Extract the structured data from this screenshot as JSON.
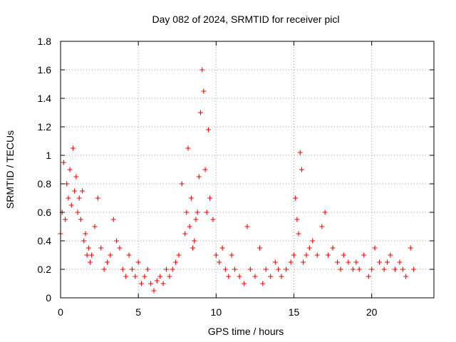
{
  "chart_data": {
    "type": "scatter",
    "title": "Day 082 of 2024, SRMTID for receiver picl",
    "xlabel": "GPS time / hours",
    "ylabel": "SRMTID / TECUs",
    "xlim": [
      0,
      24
    ],
    "ylim": [
      0,
      1.8
    ],
    "x_ticks": [
      0,
      5,
      10,
      15,
      20
    ],
    "x_tick_labels": [
      "0",
      "5",
      "10",
      "15",
      "20"
    ],
    "y_ticks": [
      0,
      0.2,
      0.4,
      0.6,
      0.8,
      1.0,
      1.2,
      1.4,
      1.6,
      1.8
    ],
    "y_tick_labels": [
      "0",
      "0.2",
      "0.4",
      "0.6",
      "0.8",
      "1",
      "1.2",
      "1.4",
      "1.6",
      "1.8"
    ],
    "grid": true,
    "marker": "+",
    "series": [
      {
        "name": "SRMTID",
        "color": "#ff0000",
        "x": [
          0.0,
          0.1,
          0.2,
          0.3,
          0.4,
          0.5,
          0.6,
          0.7,
          0.8,
          0.9,
          1.0,
          1.1,
          1.2,
          1.3,
          1.4,
          1.5,
          1.6,
          1.7,
          1.8,
          1.9,
          2.0,
          2.2,
          2.4,
          2.6,
          2.8,
          3.0,
          3.2,
          3.4,
          3.6,
          3.8,
          4.0,
          4.2,
          4.4,
          4.6,
          4.8,
          5.0,
          5.2,
          5.4,
          5.6,
          5.8,
          6.0,
          6.2,
          6.4,
          6.6,
          6.8,
          7.0,
          7.2,
          7.4,
          7.6,
          7.8,
          8.0,
          8.1,
          8.2,
          8.3,
          8.4,
          8.5,
          8.6,
          8.7,
          8.8,
          8.9,
          9.0,
          9.1,
          9.2,
          9.3,
          9.4,
          9.5,
          9.6,
          9.8,
          10.0,
          10.2,
          10.4,
          10.6,
          10.8,
          11.0,
          11.2,
          11.5,
          11.8,
          12.0,
          12.2,
          12.5,
          12.8,
          13.0,
          13.2,
          13.5,
          13.8,
          14.0,
          14.2,
          14.5,
          14.8,
          15.0,
          15.1,
          15.2,
          15.3,
          15.4,
          15.5,
          15.6,
          15.8,
          16.0,
          16.2,
          16.5,
          16.8,
          17.0,
          17.2,
          17.5,
          17.8,
          18.0,
          18.2,
          18.5,
          18.8,
          19.0,
          19.2,
          19.5,
          19.8,
          20.0,
          20.2,
          20.5,
          20.8,
          21.0,
          21.2,
          21.5,
          21.8,
          22.0,
          22.2,
          22.5,
          22.7
        ],
        "y": [
          0.45,
          0.6,
          0.95,
          0.55,
          0.8,
          0.7,
          0.9,
          0.65,
          1.05,
          0.75,
          0.85,
          0.6,
          0.7,
          0.55,
          0.75,
          0.4,
          0.45,
          0.3,
          0.35,
          0.25,
          0.3,
          0.5,
          0.7,
          0.35,
          0.2,
          0.25,
          0.3,
          0.55,
          0.4,
          0.35,
          0.2,
          0.15,
          0.3,
          0.2,
          0.15,
          0.25,
          0.1,
          0.15,
          0.2,
          0.1,
          0.05,
          0.12,
          0.15,
          0.1,
          0.2,
          0.15,
          0.2,
          0.25,
          0.3,
          0.8,
          0.45,
          0.6,
          1.05,
          0.5,
          0.7,
          0.35,
          0.4,
          0.55,
          0.6,
          0.85,
          1.3,
          1.6,
          1.45,
          0.9,
          0.6,
          1.18,
          0.7,
          0.55,
          0.3,
          0.25,
          0.35,
          0.2,
          0.15,
          0.3,
          0.2,
          0.15,
          0.1,
          0.5,
          0.2,
          0.15,
          0.35,
          0.1,
          0.2,
          0.15,
          0.25,
          0.2,
          0.15,
          0.2,
          0.25,
          0.3,
          0.7,
          0.55,
          0.45,
          1.02,
          0.9,
          0.25,
          0.3,
          0.35,
          0.4,
          0.3,
          0.5,
          0.6,
          0.3,
          0.35,
          0.25,
          0.2,
          0.3,
          0.25,
          0.2,
          0.25,
          0.2,
          0.3,
          0.15,
          0.2,
          0.35,
          0.25,
          0.2,
          0.25,
          0.3,
          0.2,
          0.25,
          0.2,
          0.15,
          0.35,
          0.2
        ]
      }
    ]
  }
}
